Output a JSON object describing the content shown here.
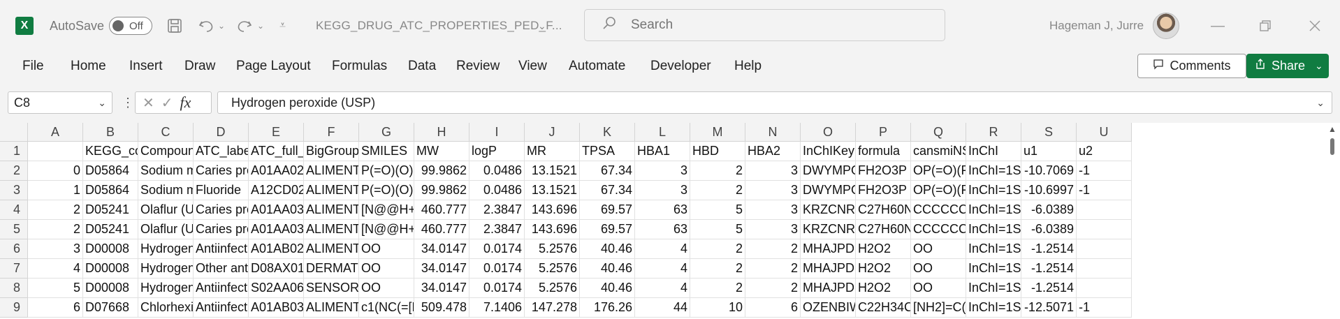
{
  "titlebar": {
    "app_icon": "excel-logo",
    "app_letter": "X",
    "autosave_label": "AutoSave",
    "autosave_state": "Off",
    "filename": "KEGG_DRUG_ATC_PROPERTIES_PED_F...",
    "search_placeholder": "Search",
    "username": "Hageman J, Jurre",
    "icons": [
      "save-icon",
      "undo-icon",
      "redo-icon",
      "customize-icon",
      "search-icon",
      "minimize-icon",
      "restore-icon",
      "close-icon"
    ]
  },
  "ribbon": {
    "tabs": [
      "File",
      "Home",
      "Insert",
      "Draw",
      "Page Layout",
      "Formulas",
      "Data",
      "Review",
      "View",
      "Automate",
      "Developer",
      "Help"
    ],
    "comments_label": "Comments",
    "share_label": "Share"
  },
  "formula_bar": {
    "name_box": "C8",
    "fx_label": "fx",
    "content": "Hydrogen peroxide (USP)"
  },
  "sheet": {
    "columns": [
      "A",
      "B",
      "C",
      "D",
      "E",
      "F",
      "G",
      "H",
      "I",
      "J",
      "K",
      "L",
      "M",
      "N",
      "O",
      "P",
      "Q",
      "R",
      "S",
      "U"
    ],
    "row_numbers": [
      "1",
      "2",
      "3",
      "4",
      "5",
      "6",
      "7",
      "8",
      "9"
    ],
    "rows": [
      [
        "",
        "KEGG_cod",
        "Compounc",
        "ATC_label",
        "ATC_full_c",
        "BigGroup_",
        "SMILES",
        "MW",
        "logP",
        "MR",
        "TPSA",
        "HBA1",
        "HBD",
        "HBA2",
        "InChIKey",
        "formula",
        "cansmiNS",
        "InChI",
        "u1",
        "u2"
      ],
      [
        "0",
        "D05864",
        "Sodium m",
        "Caries pro",
        "A01AA02",
        "ALIMENTA",
        "P(=O)(O)(",
        "99.9862",
        "0.0486",
        "13.1521",
        "67.34",
        "3",
        "2",
        "3",
        "DWYMPO",
        "FH2O3P",
        "OP(=O)(F)",
        "InChI=1S/F",
        "-10.7069",
        "-1"
      ],
      [
        "1",
        "D05864",
        "Sodium m",
        "Fluoride",
        "A12CD02",
        "ALIMENTA",
        "P(=O)(O)(",
        "99.9862",
        "0.0486",
        "13.1521",
        "67.34",
        "3",
        "2",
        "3",
        "DWYMPO",
        "FH2O3P",
        "OP(=O)(F)",
        "InChI=1S/F",
        "-10.6997",
        "-1"
      ],
      [
        "2",
        "D05241",
        "Olaflur (U",
        "Caries pro",
        "A01AA03",
        "ALIMENTA",
        "[N@@H+](",
        "460.777",
        "2.3847",
        "143.696",
        "69.57",
        "63",
        "5",
        "3",
        "KRZCNRG",
        "C27H60N2",
        "CCCCCCC",
        "InChI=1S/C",
        "-6.0389",
        ""
      ],
      [
        "2",
        "D05241",
        "Olaflur (U",
        "Caries pro",
        "A01AA03",
        "ALIMENTA",
        "[N@@H+](",
        "460.777",
        "2.3847",
        "143.696",
        "69.57",
        "63",
        "5",
        "3",
        "KRZCNRG",
        "C27H60N2",
        "CCCCCCC",
        "InChI=1S/C",
        "-6.0389",
        ""
      ],
      [
        "3",
        "D00008",
        "Hydrogen",
        "Antiinfect",
        "A01AB02",
        "ALIMENTA",
        "OO",
        "34.0147",
        "0.0174",
        "5.2576",
        "40.46",
        "4",
        "2",
        "2",
        "MHAJPDPJ",
        "H2O2",
        "OO",
        "InChI=1S/H",
        "-1.2514",
        ""
      ],
      [
        "4",
        "D00008",
        "Hydrogen",
        "Other anti",
        "D08AX01",
        "DERMATO",
        "OO",
        "34.0147",
        "0.0174",
        "5.2576",
        "40.46",
        "4",
        "2",
        "2",
        "MHAJPDPJ",
        "H2O2",
        "OO",
        "InChI=1S/H",
        "-1.2514",
        ""
      ],
      [
        "5",
        "D00008",
        "Hydrogen",
        "Antiinfect",
        "S02AA06",
        "SENSORY (",
        "OO",
        "34.0147",
        "0.0174",
        "5.2576",
        "40.46",
        "4",
        "2",
        "2",
        "MHAJPDPJ",
        "H2O2",
        "OO",
        "InChI=1S/H",
        "-1.2514",
        ""
      ],
      [
        "6",
        "D07668",
        "Chlorhexi",
        "Antiinfect",
        "A01AB03",
        "ALIMENTA",
        "c1(NC(=[N",
        "509.478",
        "7.1406",
        "147.278",
        "176.26",
        "44",
        "10",
        "6",
        "OZENBIWI",
        "C22H34Cl",
        "[NH2]=C(N",
        "InChI=1S/C",
        "-12.5071",
        "-1"
      ]
    ]
  }
}
